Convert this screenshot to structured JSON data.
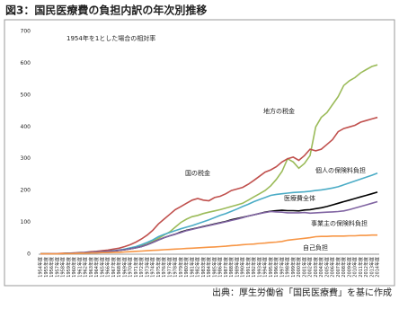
{
  "chart_data": {
    "type": "line",
    "title": "図3：国民医療費の負担内訳の年次別推移",
    "subtitle": "1954年を1とした場合の相対率",
    "source": "出典：厚生労働省「国民医療費」を基に作成",
    "categories": [
      "1954年度",
      "1955年度",
      "1956年度",
      "1957年度",
      "1958年度",
      "1959年度",
      "1960年度",
      "1961年度",
      "1962年度",
      "1963年度",
      "1964年度",
      "1965年度",
      "1966年度",
      "1967年度",
      "1968年度",
      "1969年度",
      "1970年度",
      "1971年度",
      "1972年度",
      "1973年度",
      "1974年度",
      "1975年度",
      "1976年度",
      "1977年度",
      "1978年度",
      "1979年度",
      "1980年度",
      "1981年度",
      "1982年度",
      "1983年度",
      "1984年度",
      "1985年度",
      "1986年度",
      "1987年度",
      "1988年度",
      "1989年度",
      "1990年度",
      "1991年度",
      "1992年度",
      "1993年度",
      "1994年度",
      "1995年度",
      "1996年度",
      "1997年度",
      "1998年度",
      "1999年度",
      "2000年度",
      "2001年度",
      "2002年度",
      "2003年度",
      "2004年度",
      "2005年度",
      "2006年度",
      "2007年度",
      "2008年度",
      "2009年度",
      "2010年度",
      "2011年度",
      "2012年度",
      "2013年度",
      "2014年度"
    ],
    "series": [
      {
        "name": "地方の税金",
        "color": "#9bbb59",
        "values": [
          1,
          1,
          1,
          2,
          2,
          2,
          3,
          3,
          4,
          5,
          6,
          7,
          8,
          10,
          12,
          14,
          17,
          21,
          26,
          32,
          40,
          50,
          60,
          70,
          85,
          100,
          110,
          118,
          122,
          128,
          132,
          136,
          140,
          145,
          150,
          155,
          160,
          170,
          180,
          190,
          200,
          215,
          235,
          260,
          300,
          290,
          270,
          285,
          310,
          400,
          430,
          445,
          470,
          495,
          530,
          545,
          555,
          570,
          580,
          590,
          595
        ]
      },
      {
        "name": "国の税金",
        "color": "#c0504d",
        "values": [
          1,
          1,
          2,
          2,
          3,
          3,
          4,
          5,
          6,
          8,
          9,
          11,
          13,
          16,
          19,
          24,
          30,
          38,
          48,
          60,
          75,
          95,
          110,
          125,
          140,
          150,
          160,
          170,
          175,
          170,
          168,
          178,
          182,
          190,
          200,
          205,
          210,
          220,
          232,
          245,
          258,
          265,
          275,
          290,
          300,
          305,
          295,
          310,
          330,
          325,
          330,
          345,
          360,
          385,
          395,
          400,
          405,
          415,
          420,
          425,
          430
        ]
      },
      {
        "name": "個人の保険料負担",
        "color": "#4bacc6",
        "values": [
          1,
          1,
          2,
          2,
          2,
          3,
          3,
          4,
          5,
          6,
          7,
          8,
          9,
          11,
          13,
          16,
          20,
          24,
          30,
          37,
          45,
          55,
          62,
          68,
          74,
          80,
          85,
          90,
          96,
          102,
          108,
          115,
          122,
          128,
          135,
          142,
          150,
          157,
          165,
          172,
          178,
          185,
          188,
          190,
          192,
          194,
          195,
          196,
          198,
          200,
          202,
          205,
          208,
          212,
          218,
          224,
          230,
          236,
          242,
          248,
          255
        ]
      },
      {
        "name": "医療費全体",
        "color": "#000000",
        "values": [
          1,
          1,
          2,
          2,
          2,
          3,
          3,
          4,
          5,
          6,
          7,
          8,
          9,
          10,
          12,
          14,
          17,
          20,
          24,
          30,
          37,
          45,
          52,
          58,
          63,
          70,
          75,
          79,
          83,
          87,
          91,
          95,
          99,
          103,
          108,
          112,
          116,
          120,
          124,
          128,
          132,
          135,
          137,
          138,
          137,
          137,
          136,
          139,
          140,
          143,
          146,
          150,
          155,
          160,
          165,
          170,
          175,
          180,
          185,
          190,
          195
        ]
      },
      {
        "name": "事業主の保険料負担",
        "color": "#8064a2",
        "values": [
          1,
          1,
          2,
          2,
          2,
          3,
          3,
          4,
          5,
          6,
          7,
          8,
          9,
          10,
          12,
          14,
          17,
          20,
          24,
          30,
          37,
          45,
          52,
          58,
          63,
          68,
          74,
          78,
          82,
          86,
          90,
          94,
          98,
          102,
          106,
          110,
          115,
          120,
          124,
          128,
          131,
          134,
          133,
          132,
          130,
          130,
          130,
          131,
          129,
          130,
          131,
          132,
          133,
          134,
          136,
          140,
          145,
          150,
          155,
          160,
          165
        ]
      },
      {
        "name": "自己負担",
        "color": "#f79646",
        "values": [
          1,
          1,
          1,
          1,
          2,
          2,
          2,
          3,
          3,
          4,
          4,
          5,
          5,
          6,
          6,
          7,
          8,
          9,
          10,
          11,
          12,
          13,
          14,
          15,
          16,
          17,
          18,
          19,
          20,
          21,
          22,
          23,
          24,
          25,
          27,
          28,
          30,
          31,
          32,
          34,
          35,
          37,
          38,
          40,
          44,
          46,
          48,
          50,
          52,
          55,
          56,
          56,
          57,
          57,
          57,
          58,
          58,
          59,
          59,
          60,
          60
        ]
      }
    ],
    "ylim": [
      0,
      700
    ],
    "yticks": [
      0,
      100,
      200,
      300,
      400,
      500,
      600,
      700
    ],
    "grid": false
  }
}
